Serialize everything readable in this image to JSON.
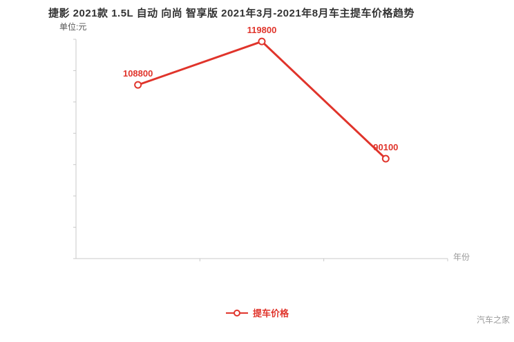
{
  "title": "捷影 2021款 1.5L 自动 向尚 智享版 2021年3月-2021年8月车主提车价格趋势",
  "unit_label": "单位:元",
  "x_axis_label": "年份",
  "legend": {
    "label": "提车价格"
  },
  "watermark": "汽车之家",
  "colors": {
    "accent": "#e0342b",
    "axis": "#c8c8c8",
    "text": "#333333",
    "muted": "#999999"
  },
  "chart_data": {
    "type": "line",
    "x": [
      1,
      2,
      3
    ],
    "series": [
      {
        "name": "提车价格",
        "values": [
          108800,
          119800,
          90100
        ]
      }
    ],
    "point_labels": [
      "108800",
      "119800",
      "90100"
    ],
    "title": "捷影 2021款 1.5L 自动 向尚 智享版 2021年3月-2021年8月车主提车价格趋势",
    "xlabel": "年份",
    "ylabel": "单位:元",
    "ylim": [
      64800,
      120350
    ],
    "grid": false,
    "legend_position": "bottom"
  }
}
